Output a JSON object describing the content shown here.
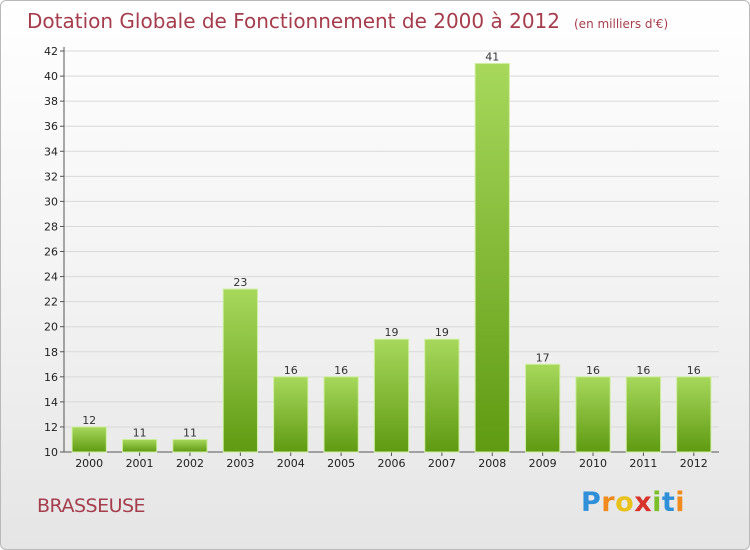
{
  "title": "Dotation Globale de Fonctionnement de 2000 à 2012",
  "unit_note": "(en milliers d'€)",
  "commune": "BRASSEUSE",
  "logo": {
    "text": "Proxiti",
    "letters": [
      {
        "char": "P",
        "color": "#2f8fd8"
      },
      {
        "char": "r",
        "color": "#f08a1c"
      },
      {
        "char": "o",
        "color": "#e8c21a"
      },
      {
        "char": "x",
        "color": "#d8332a"
      },
      {
        "char": "i",
        "color": "#7cbf2a"
      },
      {
        "char": "t",
        "color": "#2f8fd8"
      },
      {
        "char": "i",
        "color": "#f08a1c"
      }
    ]
  },
  "colors": {
    "title": "#a63d4d",
    "bar_light": "#a7d85c",
    "bar_dark": "#5f9a12",
    "grid": "#d9d9d9"
  },
  "chart_data": {
    "type": "bar",
    "title": "Dotation Globale de Fonctionnement de 2000 à 2012",
    "subtitle": "(en milliers d'€)",
    "categories": [
      "2000",
      "2001",
      "2002",
      "2003",
      "2004",
      "2005",
      "2006",
      "2007",
      "2008",
      "2009",
      "2010",
      "2011",
      "2012"
    ],
    "values": [
      12,
      11,
      11,
      23,
      16,
      16,
      19,
      19,
      41,
      17,
      16,
      16,
      16
    ],
    "ylim": [
      10,
      42
    ],
    "yticks": [
      10,
      12,
      14,
      16,
      18,
      20,
      22,
      24,
      26,
      28,
      30,
      32,
      34,
      36,
      38,
      40,
      42
    ],
    "grid": true,
    "xlabel": "",
    "ylabel": ""
  }
}
